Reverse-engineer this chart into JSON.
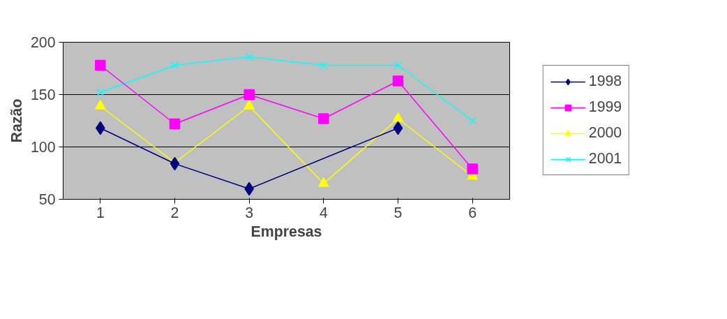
{
  "chart_data": {
    "type": "line",
    "xlabel": "Empresas",
    "ylabel": "Razão",
    "x": [
      1,
      2,
      3,
      4,
      5,
      6
    ],
    "xlim": [
      0.5,
      6.5
    ],
    "xticks": [
      1,
      2,
      3,
      4,
      5,
      6
    ],
    "ylim": [
      50,
      200
    ],
    "yticks": [
      50,
      100,
      150,
      200
    ],
    "grid": "y",
    "legend": "right",
    "line_style": "solid",
    "series": [
      {
        "name": "1998",
        "color": "#000080",
        "marker": "diamond",
        "x": [
          1,
          2,
          3,
          5
        ],
        "values": [
          118,
          84,
          60,
          118
        ]
      },
      {
        "name": "1999",
        "color": "#ff00ff",
        "marker": "square",
        "values": [
          178,
          122,
          150,
          127,
          163,
          79
        ]
      },
      {
        "name": "2000",
        "color": "#ffff00",
        "marker": "triangle",
        "values": [
          139,
          85,
          139,
          65,
          127,
          72
        ]
      },
      {
        "name": "2001",
        "color": "#00ffff",
        "marker": "cross",
        "values": [
          152,
          178,
          186,
          178,
          178,
          125
        ]
      }
    ]
  }
}
